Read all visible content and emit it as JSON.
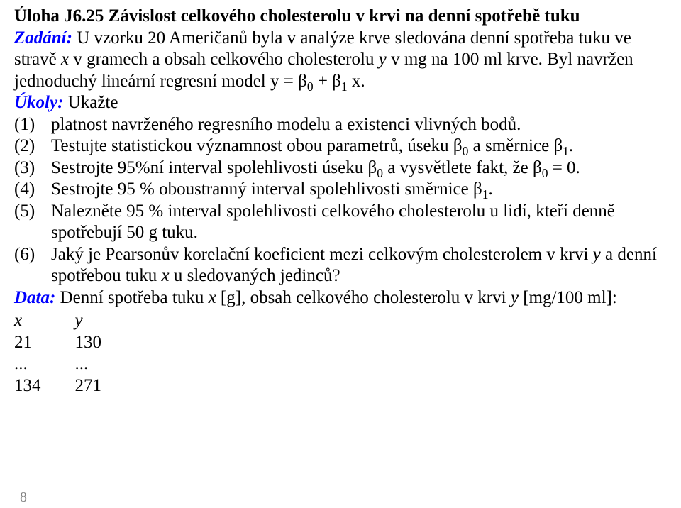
{
  "title_prefix": "Úloha J6.",
  "title_rest": "25 Závislost celkového cholesterolu v krvi na denní spotřebě tuku",
  "zadani_label": "Zadání:",
  "zadani_text_1": " U vzorku 20 Američanů byla v analýze krve sledována denní spotřeba tuku ve stravě ",
  "zadani_text_2": " v gramech a obsah celkového cholesterolu ",
  "zadani_text_3": " v mg na 100 ml krve. Byl navržen jednoduchý lineární regresní model y = β",
  "zadani_text_4": " + β",
  "zadani_text_5": " x.",
  "x_var": "x",
  "y_var": "y",
  "sub0": "0",
  "sub1": "1",
  "ukoly_label": "Úkoly:",
  "ukoly_lead": " Ukažte",
  "items": {
    "n1": "(1)",
    "t1": "platnost navrženého regresního modelu a existenci vlivných bodů.",
    "n2": "(2)",
    "t2a": "Testujte statistickou významnost obou parametrů, úseku β",
    "t2b": " a směrnice β",
    "t2c": ".",
    "n3": "(3)",
    "t3a": "Sestrojte 95%ní interval spolehlivosti úseku β",
    "t3b": " a vysvětlete fakt, že β",
    "t3c": " = 0.",
    "n4": "(4)",
    "t4a": "Sestrojte 95 % oboustranný interval spolehlivosti směrnice β",
    "t4b": ".",
    "n5": "(5)",
    "t5": "Nalezněte 95 % interval spolehlivosti celkového cholesterolu u lidí, kteří denně spotřebují 50 g tuku.",
    "n6": "(6)",
    "t6a": "Jaký je Pearsonův korelační koeficient mezi celkovým cholesterolem v krvi ",
    "t6b": " a denní spotřebou tuku ",
    "t6c": " u sledovaných jedinců?"
  },
  "data_label": "Data:",
  "data_text_1": " Denní spotřeba tuku ",
  "data_text_2": " [g], obsah celkového cholesterolu v krvi ",
  "data_text_3": " [mg/100 ml]:",
  "table": {
    "hx": "x",
    "hy": "y",
    "r1x": "21",
    "r1y": "130",
    "r2x": "...",
    "r2y": "...",
    "r3x": "134",
    "r3y": "271"
  },
  "page_number": "8"
}
